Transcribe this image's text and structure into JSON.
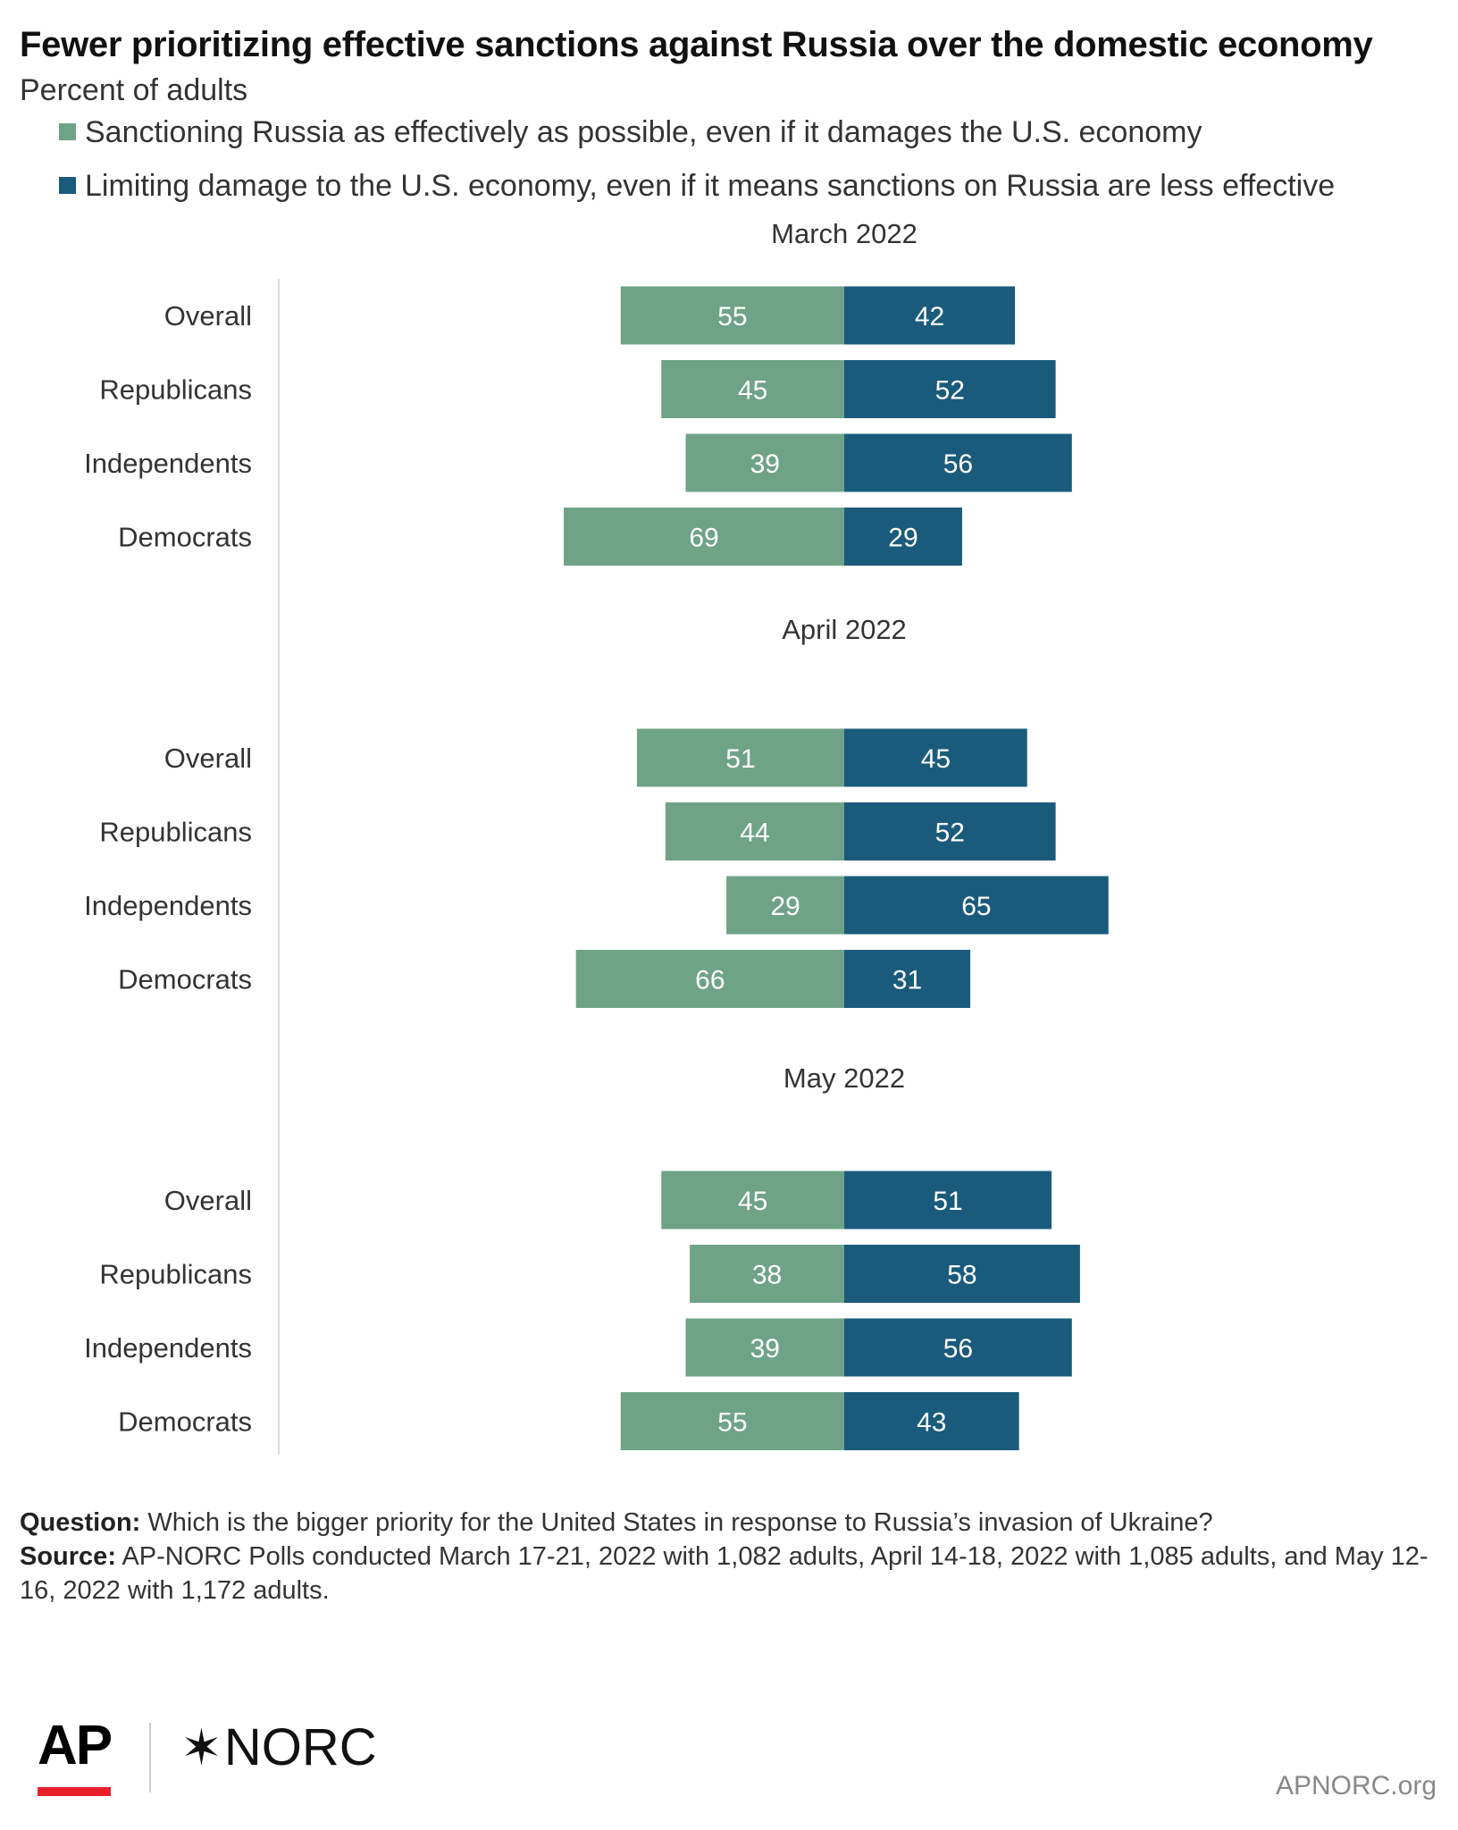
{
  "title": "Fewer prioritizing effective sanctions against Russia over the domestic economy",
  "subtitle": "Percent of adults",
  "legend": [
    {
      "label": "Sanctioning Russia as effectively as possible, even if it damages the U.S. economy",
      "color": "#6fa388"
    },
    {
      "label": "Limiting damage to the U.S. economy, even if it means sanctions on Russia are less effective",
      "color": "#1a5b7c"
    }
  ],
  "chart_data": {
    "type": "bar",
    "orientation": "horizontal-diverging",
    "categories": [
      "Overall",
      "Republicans",
      "Independents",
      "Democrats"
    ],
    "panels": [
      {
        "title": "March 2022",
        "series": [
          {
            "name": "Sanctioning Russia as effectively as possible, even if it damages the U.S. economy",
            "values": [
              55,
              45,
              39,
              69
            ]
          },
          {
            "name": "Limiting damage to the U.S. economy, even if it means sanctions on Russia are less effective",
            "values": [
              42,
              52,
              56,
              29
            ]
          }
        ]
      },
      {
        "title": "April 2022",
        "series": [
          {
            "name": "Sanctioning Russia as effectively as possible, even if it damages the U.S. economy",
            "values": [
              51,
              44,
              29,
              66
            ]
          },
          {
            "name": "Limiting damage to the U.S. economy, even if it means sanctions on Russia are less effective",
            "values": [
              45,
              52,
              65,
              31
            ]
          }
        ]
      },
      {
        "title": "May 2022",
        "series": [
          {
            "name": "Sanctioning Russia as effectively as possible, even if it damages the U.S. economy",
            "values": [
              45,
              38,
              39,
              55
            ]
          },
          {
            "name": "Limiting damage to the U.S. economy, even if it means sanctions on Russia are less effective",
            "values": [
              51,
              58,
              56,
              43
            ]
          }
        ]
      }
    ],
    "colors": [
      "#6fa388",
      "#1a5b7c"
    ],
    "data_labels": true,
    "grid": false,
    "legend_position": "top-left"
  },
  "footer": {
    "question_label": "Question:",
    "question_text": "Which is the bigger priority for the United States in response to Russia’s invasion of Ukraine?",
    "source_label": "Source:",
    "source_text": "AP-NORC Polls conducted March 17-21, 2022 with 1,082 adults, April 14-18, 2022 with 1,085 adults, and May 12-16, 2022 with 1,172 adults."
  },
  "branding": {
    "ap_logo": "AP",
    "norc_star": "✶",
    "norc_logo": "NORC",
    "url": "APNORC.org"
  }
}
